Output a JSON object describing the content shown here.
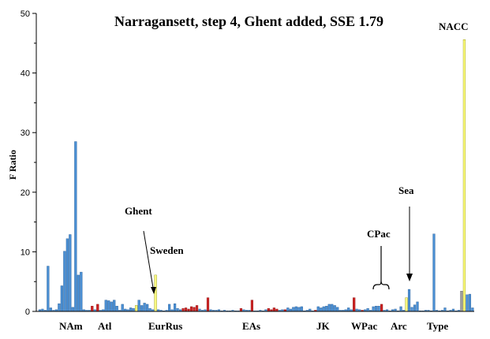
{
  "chart_data": {
    "type": "bar",
    "title": "Narragansett, step 4, Ghent added, SSE 1.79",
    "ylabel": "F Ratio",
    "ylim": [
      0,
      50
    ],
    "yticks": [
      "0",
      "10",
      "20",
      "30",
      "40",
      "50"
    ],
    "grid": false,
    "colors": {
      "blue": "#4a8fd4",
      "red": "#cc2222",
      "yellow": "#ffff80",
      "gray": "#9e9e9e",
      "axis": "#000000"
    },
    "values": [
      0.3,
      0.4,
      0.2,
      7.6,
      0.6,
      0.2,
      0.3,
      1.3,
      4.3,
      10.1,
      12.2,
      12.9,
      0.7,
      28.5,
      6.1,
      6.6,
      0.3,
      0.2,
      0.2,
      0.9,
      0.3,
      1.2,
      0.2,
      0.3,
      1.9,
      1.8,
      1.6,
      1.9,
      0.9,
      0.2,
      1.2,
      0.4,
      0.3,
      0.6,
      0.5,
      1.0,
      1.9,
      1.0,
      1.4,
      1.2,
      0.5,
      0.3,
      6.1,
      0.3,
      0.2,
      0.1,
      0.2,
      1.2,
      0.3,
      1.3,
      0.5,
      0.3,
      0.5,
      0.6,
      0.4,
      0.8,
      0.7,
      1.0,
      0.4,
      0.2,
      0.3,
      2.3,
      0.3,
      0.2,
      0.2,
      0.3,
      0.1,
      0.2,
      0.1,
      0.1,
      0.2,
      0.1,
      0.1,
      0.5,
      0.3,
      0.2,
      0.2,
      1.9,
      0.1,
      0.1,
      0.2,
      0.1,
      0.3,
      0.5,
      0.3,
      0.6,
      0.4,
      0.2,
      0.3,
      0.3,
      0.6,
      0.4,
      0.7,
      0.8,
      0.7,
      0.8,
      0.1,
      0.2,
      0.4,
      0.1,
      0.2,
      0.8,
      0.6,
      0.8,
      0.9,
      1.2,
      1.2,
      1.0,
      0.7,
      0.2,
      0.2,
      0.3,
      0.6,
      0.3,
      2.3,
      0.4,
      0.3,
      0.2,
      0.3,
      0.5,
      0.2,
      0.8,
      0.9,
      0.9,
      1.2,
      0.2,
      0.3,
      0.1,
      0.3,
      0.4,
      0.1,
      0.8,
      0.2,
      2.3,
      3.7,
      0.7,
      1.1,
      1.6,
      0.1,
      0.1,
      0.2,
      0.2,
      0.1,
      13.0,
      0.2,
      0.1,
      0.2,
      0.6,
      0.1,
      0.2,
      0.4,
      0.1,
      0.2,
      3.4,
      45.6,
      2.8,
      2.9,
      0.6
    ],
    "colorKeys": [
      "b",
      "b",
      "b",
      "b",
      "b",
      "b",
      "b",
      "b",
      "b",
      "b",
      "b",
      "b",
      "b",
      "b",
      "b",
      "b",
      "b",
      "b",
      "b",
      "r",
      "b",
      "r",
      "b",
      "b",
      "b",
      "b",
      "b",
      "b",
      "b",
      "b",
      "b",
      "b",
      "b",
      "b",
      "b",
      "y",
      "b",
      "b",
      "b",
      "b",
      "b",
      "b",
      "y",
      "b",
      "b",
      "b",
      "b",
      "b",
      "b",
      "b",
      "b",
      "b",
      "r",
      "r",
      "r",
      "r",
      "r",
      "r",
      "b",
      "b",
      "b",
      "r",
      "b",
      "b",
      "b",
      "b",
      "b",
      "b",
      "b",
      "b",
      "b",
      "b",
      "b",
      "r",
      "b",
      "b",
      "b",
      "r",
      "b",
      "b",
      "b",
      "b",
      "b",
      "r",
      "r",
      "r",
      "r",
      "b",
      "b",
      "r",
      "b",
      "b",
      "b",
      "b",
      "b",
      "b",
      "b",
      "b",
      "b",
      "b",
      "r",
      "b",
      "b",
      "b",
      "b",
      "b",
      "b",
      "b",
      "b",
      "b",
      "b",
      "b",
      "b",
      "b",
      "r",
      "b",
      "b",
      "r",
      "b",
      "b",
      "b",
      "b",
      "b",
      "b",
      "r",
      "b",
      "b",
      "b",
      "b",
      "b",
      "b",
      "b",
      "b",
      "y",
      "b",
      "b",
      "b",
      "b",
      "b",
      "b",
      "b",
      "b",
      "b",
      "b",
      "b",
      "b",
      "b",
      "b",
      "b",
      "b",
      "b",
      "b",
      "b",
      "g",
      "y",
      "b",
      "b",
      "b"
    ],
    "annotations": {
      "ghent": "Ghent",
      "sweden": "Sweden",
      "cpac": "CPac",
      "sea": "Sea",
      "nacc": "NACC"
    },
    "region_labels": [
      "NAm",
      "Atl",
      "EurRus",
      "EAs",
      "JK",
      "WPac",
      "Arc",
      "Type"
    ]
  }
}
